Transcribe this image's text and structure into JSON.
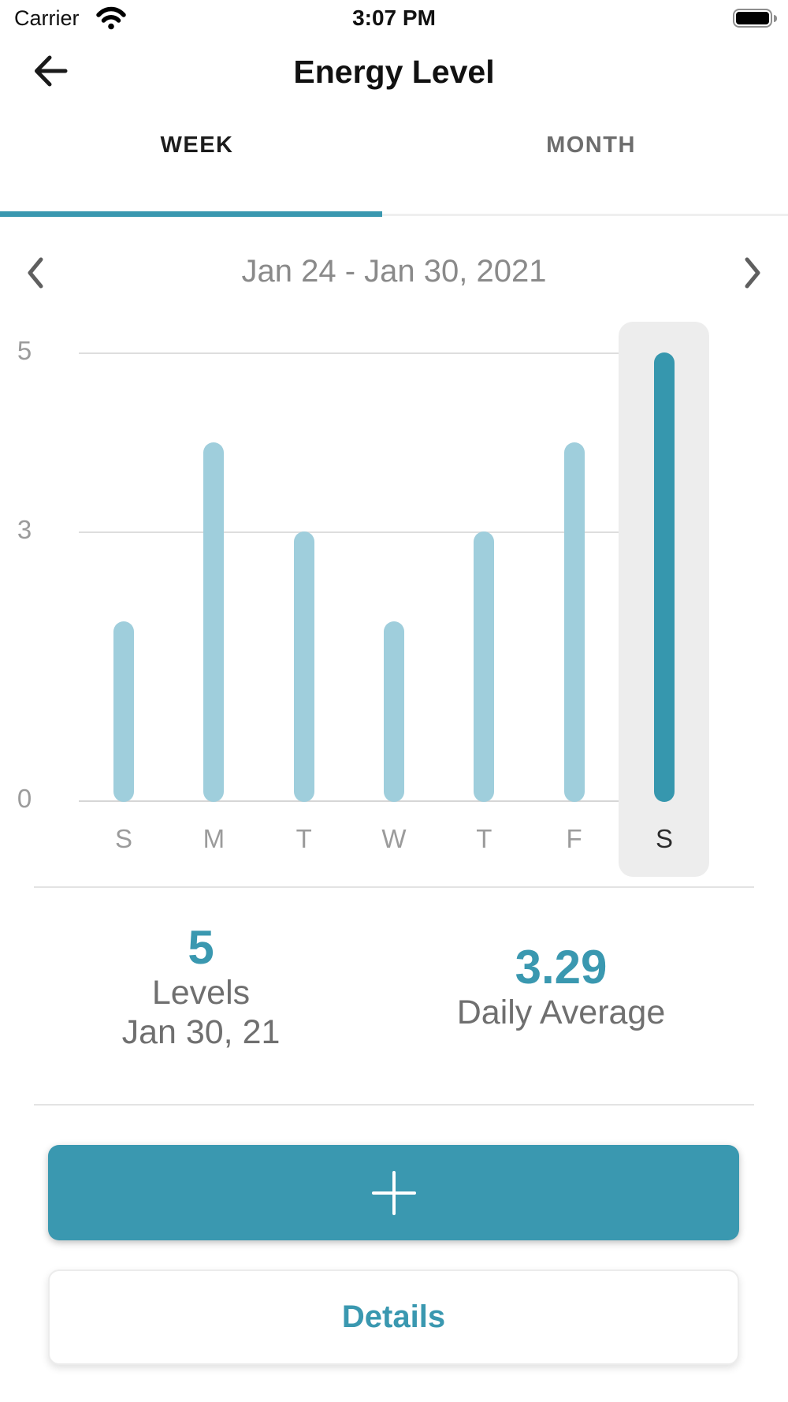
{
  "status_bar": {
    "carrier": "Carrier",
    "time": "3:07 PM",
    "icons": {
      "wifi": "wifi-icon",
      "battery": "battery-full-icon"
    }
  },
  "header": {
    "title": "Energy Level",
    "back_icon": "arrow-left-icon"
  },
  "tabs": [
    {
      "label": "WEEK",
      "active": true
    },
    {
      "label": "MONTH",
      "active": false
    }
  ],
  "date_nav": {
    "range": "Jan 24 - Jan 30, 2021",
    "prev_icon": "chevron-left-icon",
    "next_icon": "chevron-right-icon"
  },
  "chart_data": {
    "type": "bar",
    "title": "",
    "categories": [
      "S",
      "M",
      "T",
      "W",
      "T",
      "F",
      "S"
    ],
    "values": [
      2,
      4,
      3,
      2,
      3,
      4,
      5
    ],
    "selected_index": 6,
    "yticks": [
      0,
      3,
      5
    ],
    "ylim": [
      0,
      5
    ],
    "xlabel": "",
    "ylabel": "",
    "grid": true,
    "legend": false
  },
  "stats": {
    "selected": {
      "value": "5",
      "label": "Levels",
      "sublabel": "Jan 30, 21"
    },
    "average": {
      "value": "3.29",
      "label": "Daily Average"
    }
  },
  "actions": {
    "add_icon": "plus-icon",
    "details_label": "Details"
  },
  "colors": {
    "accent": "#3A98B0",
    "bar_light": "#9FCEDC",
    "bar_selected": "#3697AE",
    "highlight_bg": "#EDEDED",
    "divider": "#E3E3E3",
    "text_gray": "#6F6F6F",
    "axis_gray": "#9B9B9B"
  }
}
